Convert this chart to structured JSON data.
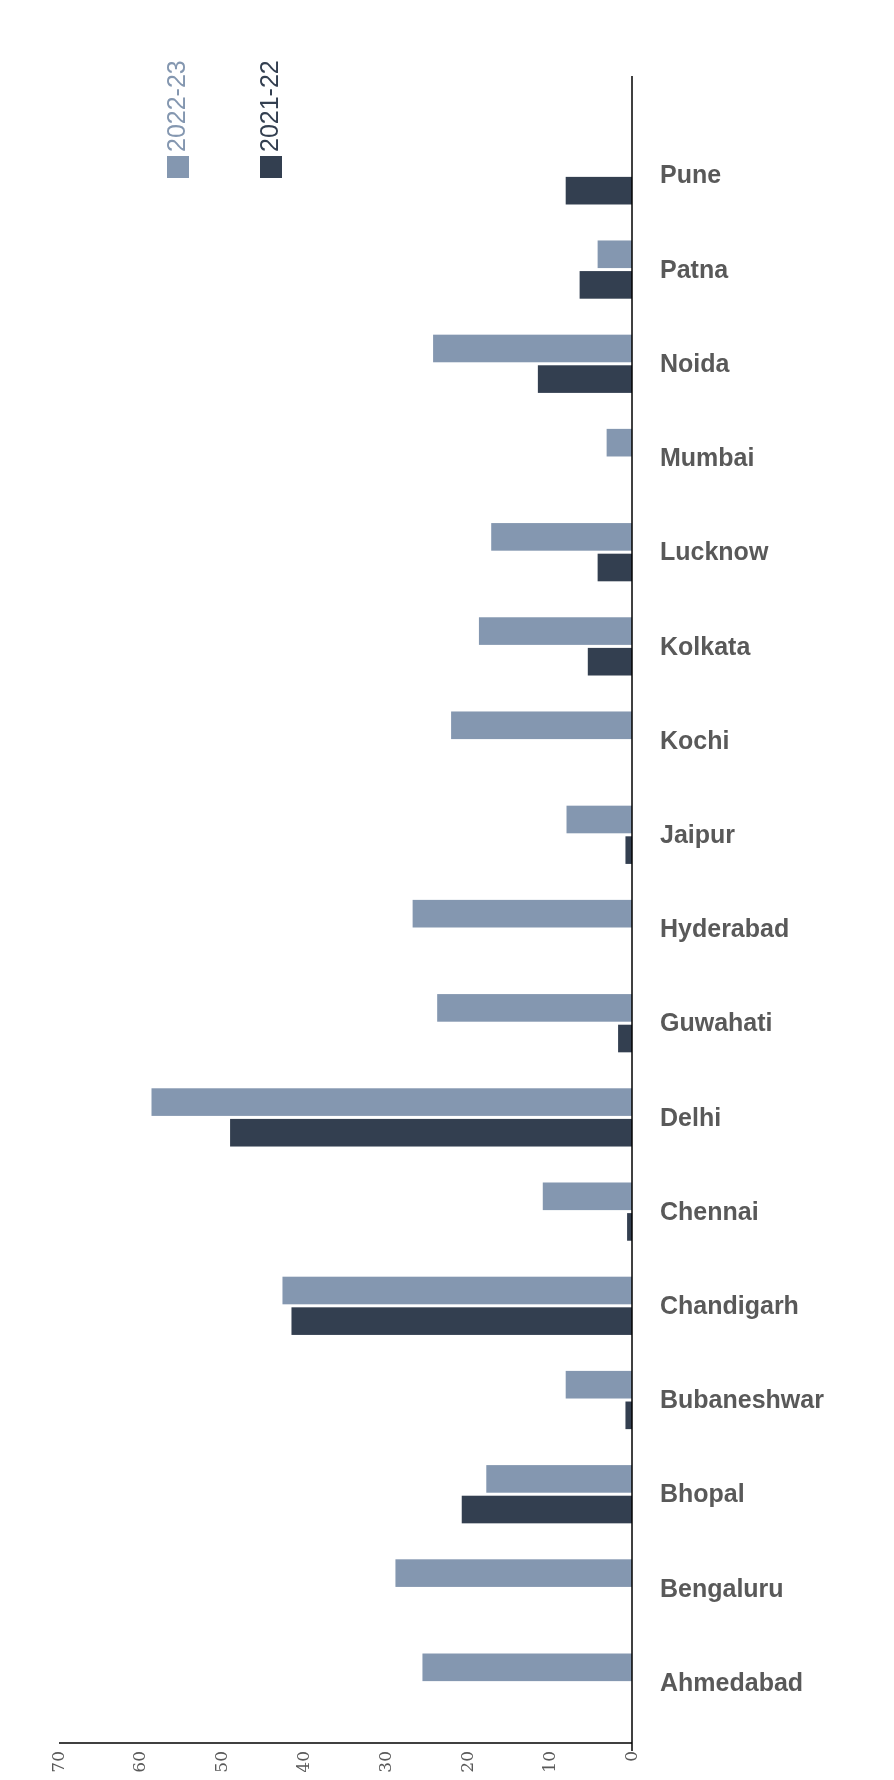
{
  "chart_data": {
    "type": "bar",
    "orientation": "horizontal",
    "categories": [
      "Pune",
      "Patna",
      "Noida",
      "Mumbai",
      "Lucknow",
      "Kolkata",
      "Kochi",
      "Jaipur",
      "Hyderabad",
      "Guwahati",
      "Delhi",
      "Chennai",
      "Chandigarh",
      "Bubaneshwar",
      "Bhopal",
      "Bengaluru",
      "Ahmedabad"
    ],
    "series": [
      {
        "name": "2022-23",
        "color": "#8497b0",
        "values": [
          null,
          4.2,
          24.3,
          3.1,
          17.2,
          18.7,
          22.1,
          8.0,
          26.8,
          23.8,
          58.7,
          10.9,
          42.7,
          8.1,
          17.8,
          28.9,
          25.6
        ]
      },
      {
        "name": "2021-22",
        "color": "#333f50",
        "values": [
          8.1,
          6.4,
          11.5,
          null,
          4.2,
          5.4,
          null,
          0.8,
          null,
          1.7,
          49.1,
          0.6,
          41.6,
          0.8,
          20.8,
          null,
          null
        ]
      }
    ],
    "xlim": [
      70,
      0
    ],
    "xticks": [
      70,
      60,
      50,
      40,
      30,
      20,
      10,
      0
    ],
    "grid": false,
    "legend": "top left"
  }
}
